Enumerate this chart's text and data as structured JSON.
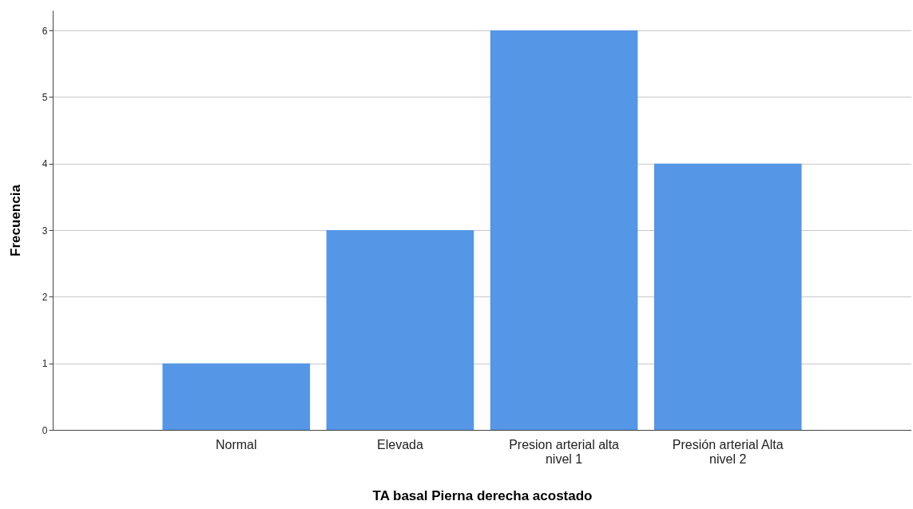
{
  "chart_data": {
    "type": "bar",
    "xlabel": "TA basal Pierna derecha acostado",
    "ylabel": "Frecuencia",
    "categories": [
      "Normal",
      "Elevada",
      "Presion arterial alta nivel 1",
      "Presión arterial Alta nivel 2"
    ],
    "values": [
      1,
      3,
      6,
      4
    ],
    "color": "#5596e6",
    "ylim": [
      0,
      6.3
    ],
    "yticks": [
      0,
      1,
      2,
      3,
      4,
      5,
      6
    ],
    "grid": "y"
  }
}
